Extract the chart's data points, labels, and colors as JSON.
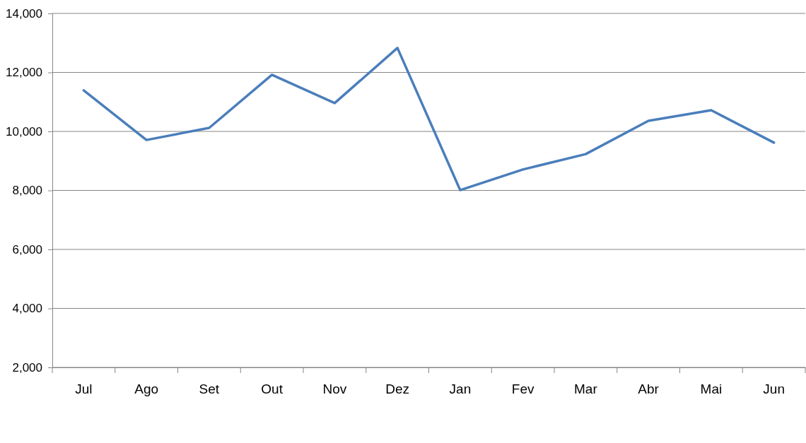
{
  "chart_data": {
    "type": "line",
    "categories": [
      "Jul",
      "Ago",
      "Set",
      "Out",
      "Nov",
      "Dez",
      "Jan",
      "Fev",
      "Mar",
      "Abr",
      "Mai",
      "Jun"
    ],
    "series": [
      {
        "color": "#4a7ebb",
        "values": [
          11390,
          9710,
          10120,
          11920,
          10960,
          12830,
          8010,
          8710,
          9230,
          10360,
          10720,
          9620
        ]
      }
    ],
    "ylim": [
      2000,
      14000
    ],
    "yticks": [
      {
        "value": 2000,
        "label": "2,000"
      },
      {
        "value": 4000,
        "label": "4,000"
      },
      {
        "value": 6000,
        "label": "6,000"
      },
      {
        "value": 8000,
        "label": "8,000"
      },
      {
        "value": 10000,
        "label": "10,000"
      },
      {
        "value": 12000,
        "label": "12,000"
      },
      {
        "value": 14000,
        "label": "14,000"
      }
    ],
    "grid": "y",
    "marker": "none",
    "line_style": "solid"
  }
}
